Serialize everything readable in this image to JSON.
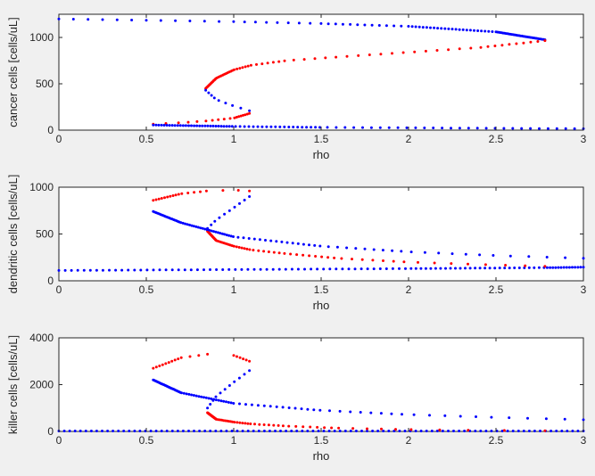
{
  "figure": {
    "background": "#f0f0f0",
    "axes_background": "#ffffff",
    "stable_color": "#0000ff",
    "unstable_color": "#ff0000"
  },
  "chart_data": [
    {
      "type": "scatter",
      "xlabel": "rho",
      "ylabel": "cancer cells [cells/uL]",
      "xlim": [
        0,
        3
      ],
      "ylim": [
        0,
        1250
      ],
      "xticks": [
        0,
        0.5,
        1,
        1.5,
        2,
        2.5,
        3
      ],
      "xtick_labels": [
        "0",
        "0.5",
        "1",
        "1.5",
        "2",
        "2.5",
        "3"
      ],
      "yticks": [
        0,
        500,
        1000
      ],
      "ytick_labels": [
        "0",
        "500",
        "1000"
      ],
      "grid": false,
      "series": [
        {
          "color": "#0000ff",
          "x": [
            0,
            0.5,
            1,
            1.5,
            2,
            2.5,
            2.78
          ],
          "y": [
            1200,
            1185,
            1170,
            1150,
            1120,
            1060,
            975
          ]
        },
        {
          "color": "#ff0000",
          "x": [
            2.78,
            2.4,
            2.0,
            1.6,
            1.3,
            1.1,
            1.0,
            0.9,
            0.84
          ],
          "y": [
            965,
            890,
            840,
            790,
            750,
            700,
            650,
            560,
            450
          ]
        },
        {
          "color": "#0000ff",
          "x": [
            0.84,
            0.9,
            1.0,
            1.09
          ],
          "y": [
            430,
            330,
            260,
            210
          ]
        },
        {
          "color": "#ff0000",
          "x": [
            1.09,
            1.0,
            0.85,
            0.7,
            0.54
          ],
          "y": [
            180,
            130,
            100,
            80,
            65
          ]
        },
        {
          "color": "#0000ff",
          "x": [
            0.54,
            1.0,
            1.5,
            2.0,
            2.5,
            3.0
          ],
          "y": [
            55,
            40,
            30,
            25,
            20,
            15
          ]
        }
      ]
    },
    {
      "type": "scatter",
      "xlabel": "rho",
      "ylabel": "dendritic cells [cells/uL]",
      "xlim": [
        0,
        3
      ],
      "ylim": [
        0,
        1000
      ],
      "xticks": [
        0,
        0.5,
        1,
        1.5,
        2,
        2.5,
        3
      ],
      "xtick_labels": [
        "0",
        "0.5",
        "1",
        "1.5",
        "2",
        "2.5",
        "3"
      ],
      "yticks": [
        0,
        500,
        1000
      ],
      "ytick_labels": [
        "0",
        "500",
        "1000"
      ],
      "grid": false,
      "series": [
        {
          "color": "#0000ff",
          "x": [
            0,
            1,
            2,
            2.78,
            3
          ],
          "y": [
            110,
            120,
            130,
            140,
            145
          ]
        },
        {
          "color": "#ff0000",
          "x": [
            2.78,
            2.4,
            2.0,
            1.6,
            1.3,
            1.1,
            1.0,
            0.9,
            0.85
          ],
          "y": [
            155,
            175,
            200,
            240,
            290,
            330,
            370,
            430,
            530
          ]
        },
        {
          "color": "#0000ff",
          "x": [
            0.85,
            0.9,
            1.0,
            1.09
          ],
          "y": [
            560,
            650,
            780,
            900
          ]
        },
        {
          "color": "#ff0000",
          "x": [
            1.09,
            1.0,
            0.85,
            0.7,
            0.54
          ],
          "y": [
            960,
            970,
            960,
            930,
            860
          ]
        },
        {
          "color": "#0000ff",
          "x": [
            0.54,
            0.7,
            1.0,
            1.5,
            2.0,
            2.5,
            3.0
          ],
          "y": [
            740,
            620,
            470,
            370,
            310,
            270,
            240
          ]
        }
      ]
    },
    {
      "type": "scatter",
      "xlabel": "rho",
      "ylabel": "killer cells [cells/uL]",
      "xlim": [
        0,
        3
      ],
      "ylim": [
        0,
        4000
      ],
      "xticks": [
        0,
        0.5,
        1,
        1.5,
        2,
        2.5,
        3
      ],
      "xtick_labels": [
        "0",
        "0.5",
        "1",
        "1.5",
        "2",
        "2.5",
        "3"
      ],
      "yticks": [
        0,
        2000,
        4000
      ],
      "ytick_labels": [
        "0",
        "2000",
        "4000"
      ],
      "grid": false,
      "series": [
        {
          "color": "#0000ff",
          "x": [
            0,
            1,
            2,
            3
          ],
          "y": [
            20,
            20,
            20,
            20
          ]
        },
        {
          "color": "#ff0000",
          "x": [
            2.78,
            2.4,
            2.0,
            1.6,
            1.3,
            1.1,
            1.0,
            0.9,
            0.85
          ],
          "y": [
            30,
            50,
            80,
            140,
            230,
            320,
            400,
            520,
            800
          ]
        },
        {
          "color": "#0000ff",
          "x": [
            0.85,
            0.9,
            1.0,
            1.09
          ],
          "y": [
            1000,
            1500,
            2100,
            2600
          ]
        },
        {
          "color": "#ff0000",
          "x": [
            1.09,
            1.0,
            0.85,
            0.7,
            0.54
          ],
          "y": [
            3000,
            3250,
            3300,
            3150,
            2700
          ]
        },
        {
          "color": "#0000ff",
          "x": [
            0.54,
            0.7,
            1.0,
            1.5,
            2.0,
            2.5,
            3.0
          ],
          "y": [
            2200,
            1650,
            1200,
            900,
            720,
            600,
            500
          ]
        }
      ]
    }
  ]
}
